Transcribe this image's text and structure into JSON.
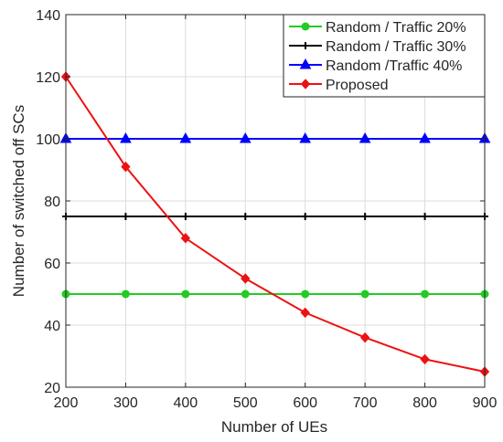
{
  "chart_data": {
    "type": "line",
    "title": "",
    "xlabel": "Number of UEs",
    "ylabel": "Number of switched off SCs",
    "xlim": [
      200,
      900
    ],
    "ylim": [
      20,
      140
    ],
    "x_ticks": [
      200,
      300,
      400,
      500,
      600,
      700,
      800,
      900
    ],
    "y_ticks": [
      20,
      40,
      60,
      80,
      100,
      120,
      140
    ],
    "grid": true,
    "legend_position": "top-right",
    "x": [
      200,
      300,
      400,
      500,
      600,
      700,
      800,
      900
    ],
    "series": [
      {
        "name": "Random / Traffic 20%",
        "color": "#22cc22",
        "marker": "circle",
        "values": [
          50,
          50,
          50,
          50,
          50,
          50,
          50,
          50
        ]
      },
      {
        "name": "Random / Traffic 30%",
        "color": "#000000",
        "marker": "plus",
        "values": [
          75,
          75,
          75,
          75,
          75,
          75,
          75,
          75
        ]
      },
      {
        "name": "Random /Traffic 40%",
        "color": "#0000ff",
        "marker": "triangle",
        "values": [
          100,
          100,
          100,
          100,
          100,
          100,
          100,
          100
        ]
      },
      {
        "name": "Proposed",
        "color": "#ee1111",
        "marker": "diamond",
        "values": [
          120,
          91,
          68,
          55,
          44,
          36,
          29,
          25
        ]
      }
    ]
  }
}
